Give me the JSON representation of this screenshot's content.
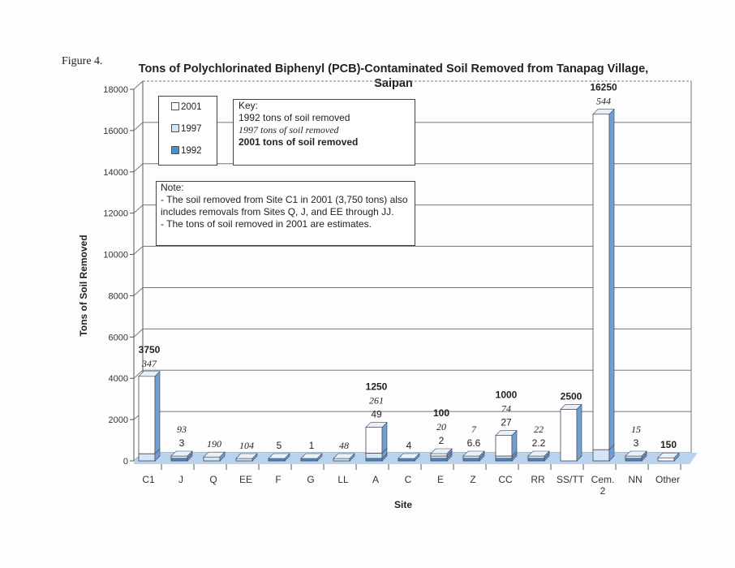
{
  "figure_label": "Figure 4.",
  "chart_data": {
    "type": "bar",
    "stacked": true,
    "three_d": true,
    "title": "Tons of Polychlorinated Biphenyl (PCB)-Contaminated Soil Removed from Tanapag Village, Saipan",
    "xlabel": "Site",
    "ylabel": "Tons of Soil Removed",
    "ylim": [
      0,
      18000
    ],
    "yticks": [
      0,
      2000,
      4000,
      6000,
      8000,
      10000,
      12000,
      14000,
      16000,
      18000
    ],
    "grid": true,
    "categories": [
      "C1",
      "J",
      "Q",
      "EE",
      "F",
      "G",
      "LL",
      "A",
      "C",
      "E",
      "Z",
      "CC",
      "RR",
      "SS/TT",
      "Cem. 2",
      "NN",
      "Other"
    ],
    "series": [
      {
        "name": "1992",
        "color": "#4f8fc9",
        "values": [
          null,
          3,
          null,
          null,
          5,
          1,
          null,
          49,
          4,
          2,
          6.6,
          27,
          2.2,
          null,
          null,
          3,
          null
        ]
      },
      {
        "name": "1997",
        "color": "#d3e6f5",
        "values": [
          347,
          93,
          190,
          104,
          null,
          null,
          48,
          261,
          null,
          20,
          7,
          74,
          22,
          null,
          544,
          15,
          null
        ]
      },
      {
        "name": "2001",
        "color": "#ffffff",
        "values": [
          3750,
          null,
          null,
          null,
          null,
          null,
          null,
          1250,
          null,
          100,
          null,
          1000,
          null,
          2500,
          16250,
          null,
          150
        ]
      }
    ],
    "legend": {
      "position": "top-left",
      "entries": [
        "2001",
        "1997",
        "1992"
      ]
    },
    "key": {
      "heading": "Key:",
      "lines": [
        "1992 tons of soil removed",
        "1997 tons of soil removed",
        "2001 tons of soil removed"
      ]
    },
    "note": {
      "heading": "Note:",
      "lines": [
        "- The soil removed from Site C1 in 2001 (3,750 tons) also",
        "includes removals from Sites Q, J, and EE through JJ.",
        "- The tons of soil removed in 2001 are estimates."
      ]
    }
  }
}
